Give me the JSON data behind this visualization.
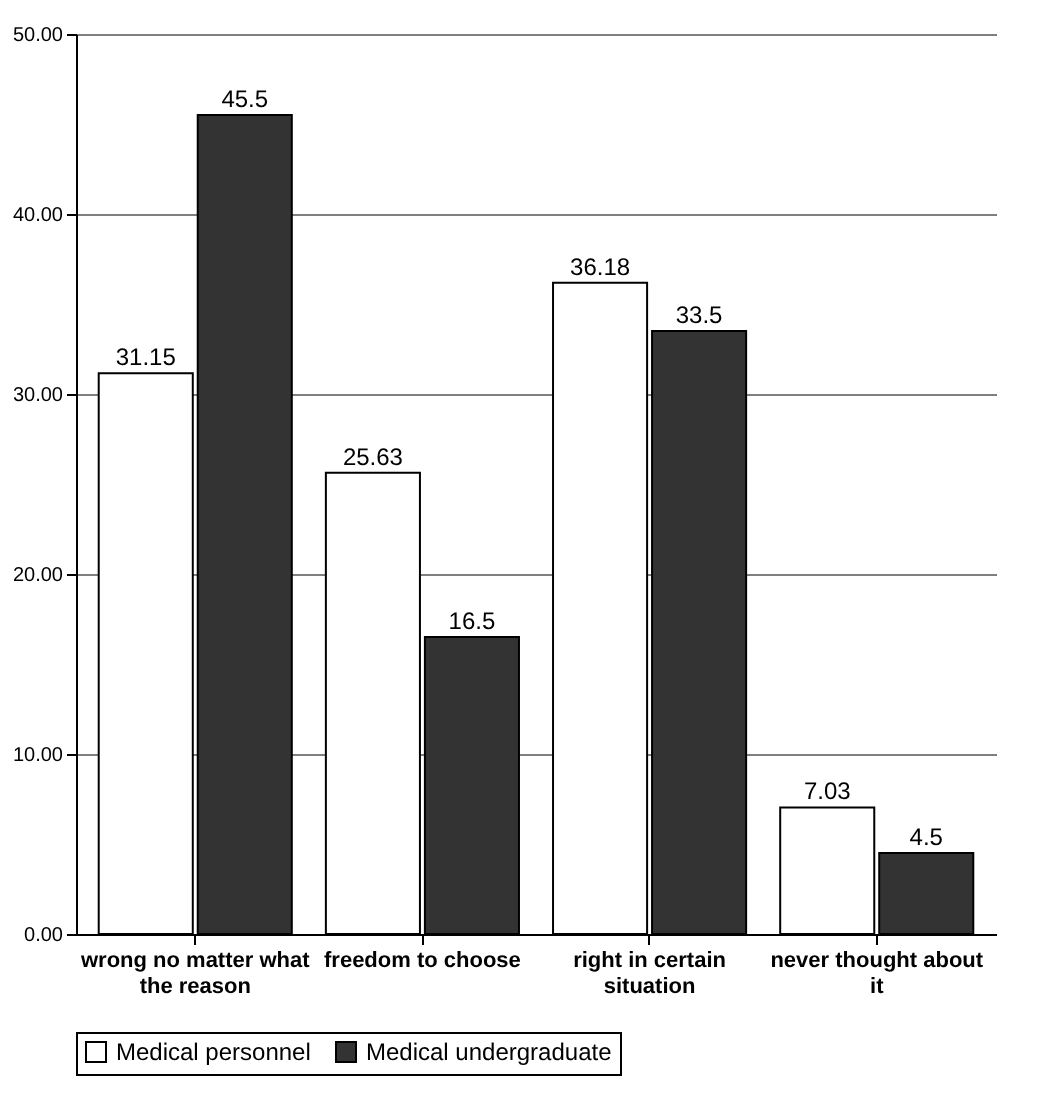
{
  "chart_data": {
    "type": "bar",
    "categories": [
      "wrong no matter what the reason",
      "freedom to choose",
      "right in certain situation",
      "never thought about it"
    ],
    "series": [
      {
        "name": "Medical personnel",
        "color": "#ffffff",
        "values": [
          31.15,
          25.63,
          36.18,
          7.03
        ]
      },
      {
        "name": "Medical undergraduate",
        "color": "#333333",
        "values": [
          45.5,
          16.5,
          33.5,
          4.5
        ]
      }
    ],
    "ylim": [
      0,
      50
    ],
    "yticks": [
      {
        "value": 0,
        "label": "0.00"
      },
      {
        "value": 10,
        "label": "10.00"
      },
      {
        "value": 20,
        "label": "20.00"
      },
      {
        "value": 30,
        "label": "30.00"
      },
      {
        "value": 40,
        "label": "40.00"
      },
      {
        "value": 50,
        "label": "50.00"
      }
    ],
    "grid": "y",
    "legend": "bottom",
    "data_labels": true
  }
}
